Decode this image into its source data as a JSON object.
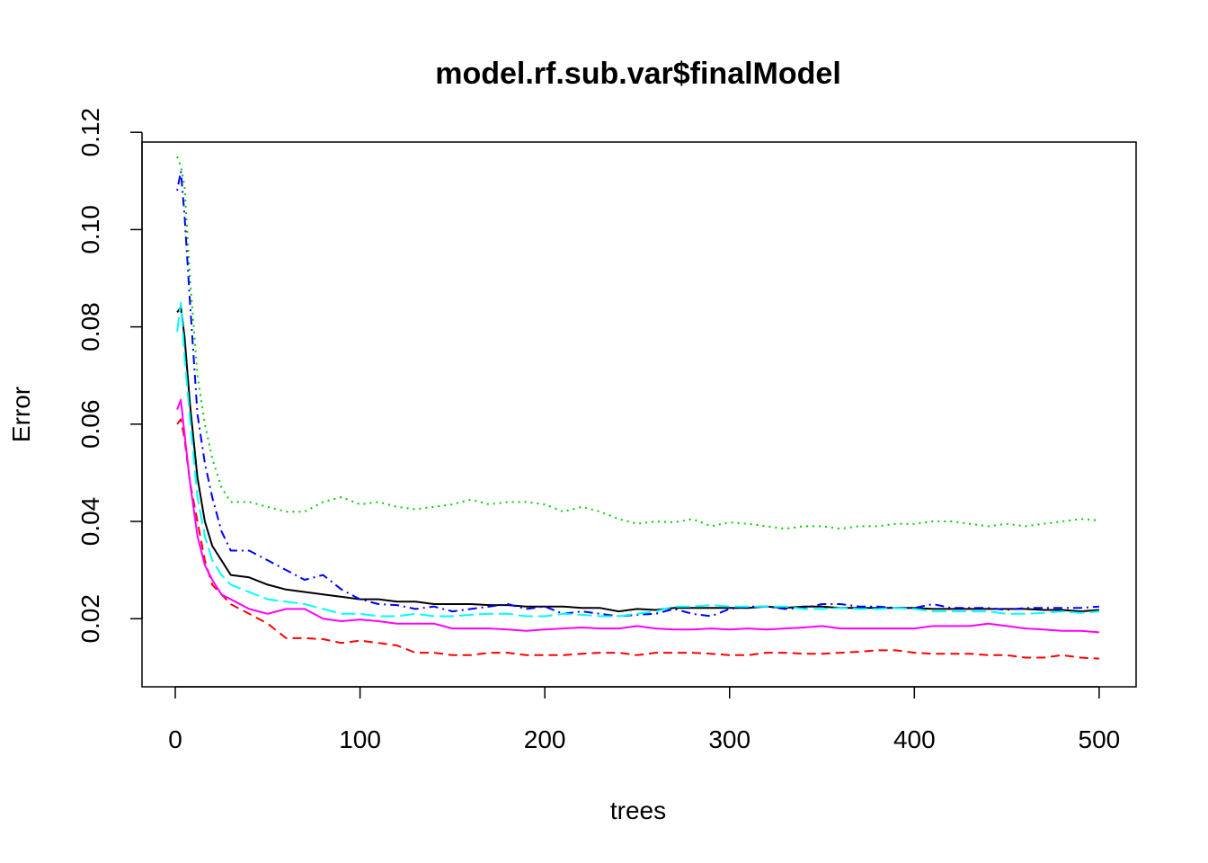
{
  "chart_data": {
    "type": "line",
    "title": "model.rf.sub.var$finalModel",
    "xlabel": "trees",
    "ylabel": "Error",
    "xlim": [
      -18,
      520
    ],
    "ylim": [
      0.006,
      0.118
    ],
    "x_ticks": [
      0,
      100,
      200,
      300,
      400,
      500
    ],
    "x_tick_labels": [
      "0",
      "100",
      "200",
      "300",
      "400",
      "500"
    ],
    "y_ticks": [
      0.02,
      0.04,
      0.06,
      0.08,
      0.1,
      0.12
    ],
    "y_tick_labels": [
      "0.02",
      "0.04",
      "0.06",
      "0.08",
      "0.10",
      "0.12"
    ],
    "grid": false,
    "legend": "none",
    "x": [
      1,
      3,
      5,
      8,
      12,
      16,
      20,
      25,
      30,
      40,
      50,
      60,
      70,
      80,
      90,
      100,
      110,
      120,
      130,
      140,
      150,
      160,
      170,
      180,
      190,
      200,
      210,
      220,
      230,
      240,
      250,
      260,
      270,
      280,
      290,
      300,
      310,
      320,
      330,
      340,
      350,
      360,
      370,
      380,
      390,
      400,
      410,
      420,
      430,
      440,
      450,
      460,
      470,
      480,
      490,
      500
    ],
    "series": [
      {
        "color": "#000000",
        "dash": "solid",
        "values": [
          0.083,
          0.084,
          0.078,
          0.064,
          0.049,
          0.04,
          0.035,
          0.032,
          0.029,
          0.0285,
          0.027,
          0.026,
          0.0255,
          0.025,
          0.0245,
          0.024,
          0.024,
          0.0235,
          0.0235,
          0.023,
          0.023,
          0.023,
          0.0228,
          0.0228,
          0.0225,
          0.0225,
          0.0225,
          0.0222,
          0.0222,
          0.0215,
          0.022,
          0.0218,
          0.0222,
          0.0222,
          0.0222,
          0.0222,
          0.0222,
          0.0225,
          0.0222,
          0.0225,
          0.0225,
          0.0222,
          0.0222,
          0.0222,
          0.0222,
          0.0222,
          0.022,
          0.022,
          0.022,
          0.022,
          0.022,
          0.022,
          0.0218,
          0.0218,
          0.0215,
          0.0218
        ]
      },
      {
        "color": "#ff0000",
        "dash": "dashed",
        "values": [
          0.06,
          0.061,
          0.057,
          0.048,
          0.04,
          0.032,
          0.027,
          0.025,
          0.023,
          0.021,
          0.019,
          0.016,
          0.016,
          0.0158,
          0.015,
          0.0155,
          0.015,
          0.0145,
          0.013,
          0.013,
          0.0125,
          0.0125,
          0.013,
          0.013,
          0.0125,
          0.0125,
          0.0125,
          0.0128,
          0.013,
          0.013,
          0.0125,
          0.013,
          0.013,
          0.013,
          0.0128,
          0.0125,
          0.0125,
          0.013,
          0.013,
          0.0128,
          0.0128,
          0.013,
          0.0132,
          0.0135,
          0.0135,
          0.013,
          0.0128,
          0.0128,
          0.0128,
          0.0125,
          0.0125,
          0.012,
          0.012,
          0.0125,
          0.012,
          0.0118
        ]
      },
      {
        "color": "#00cd00",
        "dash": "dotted",
        "values": [
          0.115,
          0.113,
          0.109,
          0.09,
          0.07,
          0.06,
          0.053,
          0.047,
          0.044,
          0.044,
          0.043,
          0.042,
          0.042,
          0.044,
          0.045,
          0.0435,
          0.044,
          0.043,
          0.0425,
          0.043,
          0.0435,
          0.0445,
          0.0435,
          0.044,
          0.044,
          0.0435,
          0.042,
          0.043,
          0.042,
          0.0405,
          0.0395,
          0.04,
          0.0398,
          0.0405,
          0.039,
          0.0398,
          0.0395,
          0.039,
          0.0385,
          0.039,
          0.039,
          0.0385,
          0.039,
          0.039,
          0.0395,
          0.0395,
          0.04,
          0.04,
          0.0395,
          0.039,
          0.0395,
          0.039,
          0.0395,
          0.04,
          0.0405,
          0.0402
        ]
      },
      {
        "color": "#0000ff",
        "dash": "dotdash",
        "values": [
          0.108,
          0.112,
          0.103,
          0.085,
          0.062,
          0.052,
          0.045,
          0.038,
          0.034,
          0.034,
          0.032,
          0.03,
          0.028,
          0.029,
          0.026,
          0.024,
          0.023,
          0.0228,
          0.022,
          0.0225,
          0.0215,
          0.022,
          0.0225,
          0.023,
          0.022,
          0.0225,
          0.021,
          0.0215,
          0.021,
          0.0205,
          0.0208,
          0.021,
          0.022,
          0.021,
          0.0205,
          0.022,
          0.0225,
          0.0225,
          0.022,
          0.0222,
          0.023,
          0.023,
          0.0225,
          0.0225,
          0.0222,
          0.0222,
          0.023,
          0.0222,
          0.0222,
          0.0222,
          0.0218,
          0.0222,
          0.0222,
          0.0222,
          0.0222,
          0.0225
        ]
      },
      {
        "color": "#00ffff",
        "dash": "longdash",
        "values": [
          0.079,
          0.085,
          0.074,
          0.061,
          0.045,
          0.037,
          0.032,
          0.029,
          0.027,
          0.0255,
          0.024,
          0.0235,
          0.023,
          0.022,
          0.021,
          0.021,
          0.0205,
          0.0205,
          0.021,
          0.0205,
          0.0205,
          0.0208,
          0.021,
          0.021,
          0.0205,
          0.0205,
          0.021,
          0.0208,
          0.0205,
          0.0205,
          0.021,
          0.0215,
          0.0225,
          0.0225,
          0.0228,
          0.0225,
          0.0225,
          0.0225,
          0.0225,
          0.022,
          0.022,
          0.0222,
          0.022,
          0.022,
          0.0222,
          0.022,
          0.0215,
          0.0215,
          0.0215,
          0.0215,
          0.021,
          0.021,
          0.0212,
          0.0215,
          0.0212,
          0.0215
        ]
      },
      {
        "color": "#ff00ff",
        "dash": "solid",
        "values": [
          0.063,
          0.065,
          0.058,
          0.048,
          0.037,
          0.031,
          0.028,
          0.025,
          0.024,
          0.022,
          0.021,
          0.022,
          0.022,
          0.02,
          0.0195,
          0.0198,
          0.0195,
          0.019,
          0.019,
          0.019,
          0.018,
          0.018,
          0.018,
          0.0178,
          0.0175,
          0.0178,
          0.018,
          0.0182,
          0.018,
          0.018,
          0.0185,
          0.018,
          0.0178,
          0.0178,
          0.018,
          0.0178,
          0.018,
          0.0178,
          0.018,
          0.0182,
          0.0185,
          0.018,
          0.018,
          0.018,
          0.018,
          0.018,
          0.0185,
          0.0185,
          0.0185,
          0.019,
          0.0185,
          0.018,
          0.0178,
          0.0175,
          0.0175,
          0.0172
        ]
      }
    ]
  }
}
